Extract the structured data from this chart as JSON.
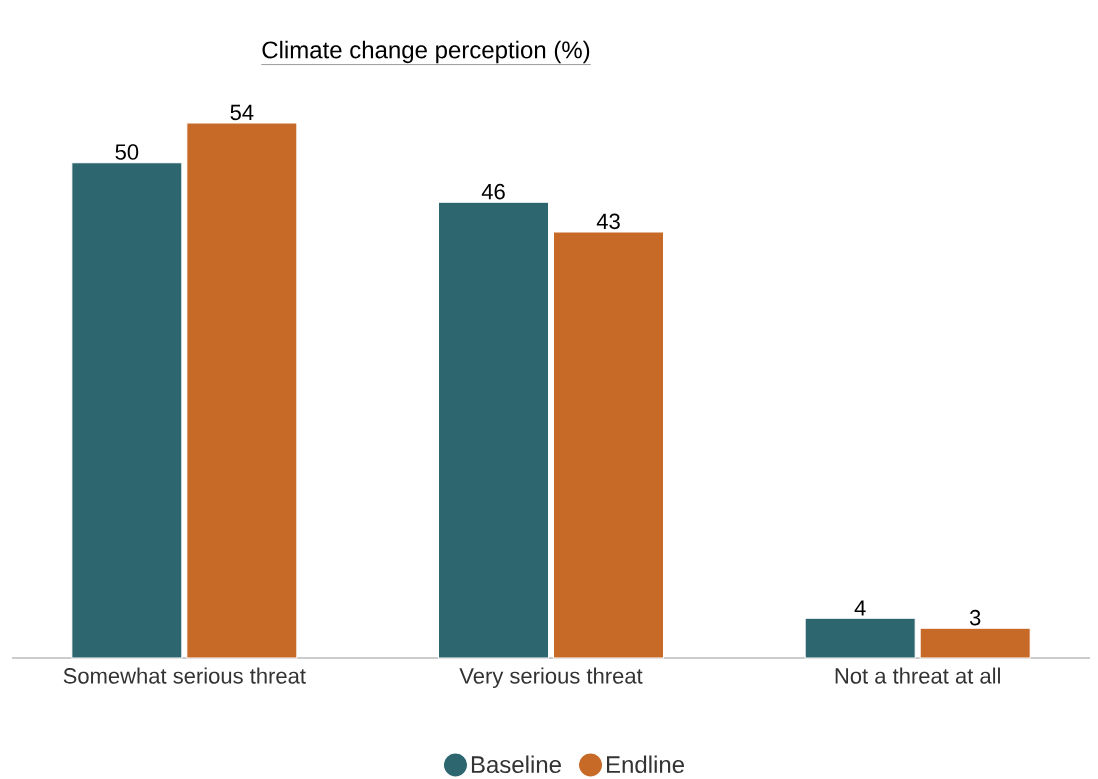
{
  "chart_data": {
    "type": "bar",
    "title": "Climate change perception (%)",
    "categories": [
      "Somewhat serious threat",
      "Very serious threat",
      "Not a threat at all"
    ],
    "series": [
      {
        "name": "Baseline",
        "color": "#2e6670",
        "values": [
          50,
          46,
          4
        ]
      },
      {
        "name": "Endline",
        "color": "#c76a28",
        "values": [
          54,
          43,
          3
        ]
      }
    ],
    "data_labels": true,
    "legend": "bottom"
  }
}
